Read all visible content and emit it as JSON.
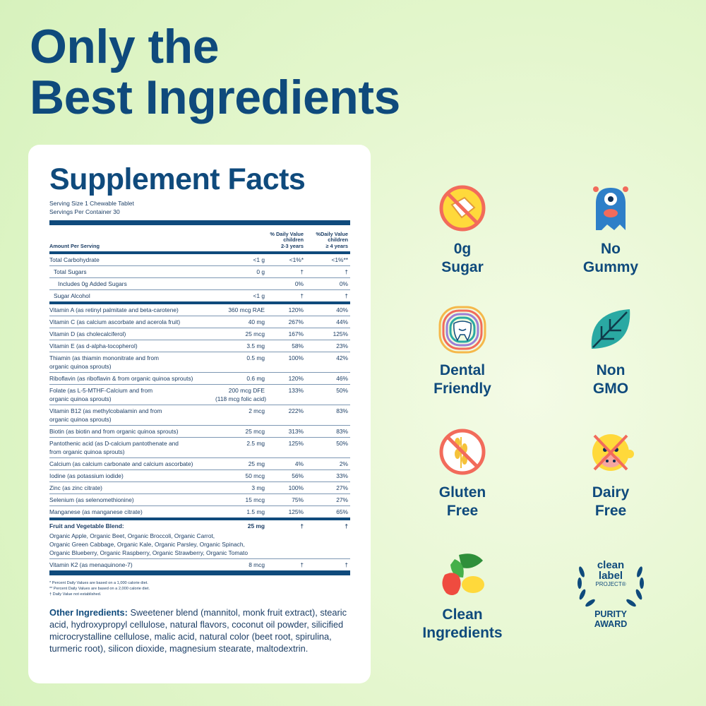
{
  "headline": [
    "Only the",
    "Best Ingredients"
  ],
  "supplement_facts": {
    "title": "Supplement Facts",
    "serving_size": "Serving Size 1 Chewable Tablet",
    "servings_per_container": "Servings Per Container 30",
    "header": {
      "amount": "Amount Per Serving",
      "dv1": [
        "% Daily Value",
        "children",
        "2-3 years"
      ],
      "dv2": [
        "%Daily Value",
        "children",
        "≥ 4 years"
      ]
    },
    "carbs": [
      {
        "name": "Total Carbohydrate",
        "amount": "<1 g",
        "dv1": "<1%*",
        "dv2": "<1%**",
        "sub": [
          {
            "name": "Total Sugars",
            "amount": "0 g",
            "dv1": "†",
            "dv2": "†",
            "sub": [
              {
                "name": "Includes 0g Added Sugars",
                "dv1": "0%",
                "dv2": "0%"
              }
            ]
          },
          {
            "name": "Sugar Alcohol",
            "amount": "<1 g",
            "dv1": "†",
            "dv2": "†"
          }
        ]
      }
    ],
    "nutrients": [
      {
        "name": "Vitamin A (as retinyl palmitate and beta-carotene)",
        "amount": "360 mcg RAE",
        "dv1": "120%",
        "dv2": "40%"
      },
      {
        "name": "Vitamin C (as calcium ascorbate and acerola fruit)",
        "amount": "40 mg",
        "dv1": "267%",
        "dv2": "44%"
      },
      {
        "name": "Vitamin D (as cholecalciferol)",
        "amount": "25 mcg",
        "dv1": "167%",
        "dv2": "125%"
      },
      {
        "name": "Vitamin E (as d-alpha-tocopherol)",
        "amount": "3.5 mg",
        "dv1": "58%",
        "dv2": "23%"
      },
      {
        "name": [
          "Thiamin (as thiamin mononitrate and from",
          "organic quinoa sprouts)"
        ],
        "amount": "0.5 mg",
        "dv1": "100%",
        "dv2": "42%"
      },
      {
        "name": "Riboflavin (as riboflavin & from organic quinoa sprouts)",
        "amount": "0.6 mg",
        "dv1": "120%",
        "dv2": "46%"
      },
      {
        "name": [
          "Folate (as L-5-MTHF-Calcium and from",
          "organic quinoa sprouts)"
        ],
        "amount": [
          "200 mcg DFE",
          "(118 mcg folic acid)"
        ],
        "dv1": "133%",
        "dv2": "50%"
      },
      {
        "name": [
          "Vitamin B12 (as methylcobalamin and from",
          "organic quinoa sprouts)"
        ],
        "amount": "2 mcg",
        "dv1": "222%",
        "dv2": "83%"
      },
      {
        "name": "Biotin (as biotin and from organic quinoa sprouts)",
        "amount": "25 mcg",
        "dv1": "313%",
        "dv2": "83%"
      },
      {
        "name": [
          "Pantothenic acid (as D-calcium pantothenate and",
          "from organic quinoa sprouts)"
        ],
        "amount": "2.5 mg",
        "dv1": "125%",
        "dv2": "50%"
      },
      {
        "name": "Calcium (as calcium carbonate and calcium ascorbate)",
        "amount": "25 mg",
        "dv1": "4%",
        "dv2": "2%"
      },
      {
        "name": "Iodine (as potassium iodide)",
        "amount": "50 mcg",
        "dv1": "56%",
        "dv2": "33%"
      },
      {
        "name": "Zinc (as zinc citrate)",
        "amount": "3 mg",
        "dv1": "100%",
        "dv2": "27%"
      },
      {
        "name": "Selenium (as selenomethionine)",
        "amount": "15 mcg",
        "dv1": "75%",
        "dv2": "27%"
      },
      {
        "name": "Manganese (as manganese citrate)",
        "amount": "1.5 mg",
        "dv1": "125%",
        "dv2": "65%"
      }
    ],
    "blend": {
      "name": "Fruit and Vegetable Blend:",
      "amount": "25 mg",
      "dv1": "†",
      "dv2": "†",
      "ingredients": [
        "Organic Apple, Organic Beet, Organic Broccoli, Organic Carrot,",
        "Organic Green Cabbage, Organic Kale, Organic Parsley, Organic Spinach,",
        "Organic Blueberry, Organic Raspberry, Organic Strawberry, Organic Tomato"
      ]
    },
    "extras": [
      {
        "name": "Vitamin K2 (as menaquinone-7)",
        "amount": "8 mcg",
        "dv1": "†",
        "dv2": "†"
      }
    ],
    "footnotes": [
      "* Percent Daily Values are based on a 1,000 calorie diet.",
      "** Percent Daily Values are based on a 2,000 calorie diet.",
      "† Daily Value not established."
    ],
    "other_ingredients": {
      "label": "Other Ingredients:",
      "text": "Sweetener blend (mannitol, monk fruit extract), stearic acid, hydroxypropyl cellulose, natural flavors, coconut oil powder, silicified microcrystalline cellulose, malic acid, natural color (beet root, spirulina, turmeric root), silicon dioxide, magnesium stearate, maltodextrin."
    }
  },
  "features": [
    [
      "0g",
      "Sugar"
    ],
    [
      "No",
      "Gummy"
    ],
    [
      "Dental",
      "Friendly"
    ],
    [
      "Non",
      "GMO"
    ],
    [
      "Gluten",
      "Free"
    ],
    [
      "Dairy",
      "Free"
    ],
    [
      "Clean",
      "Ingredients"
    ],
    [
      "PURITY",
      "AWARD"
    ]
  ],
  "badge": [
    "clean",
    "label",
    "PROJECT®"
  ]
}
